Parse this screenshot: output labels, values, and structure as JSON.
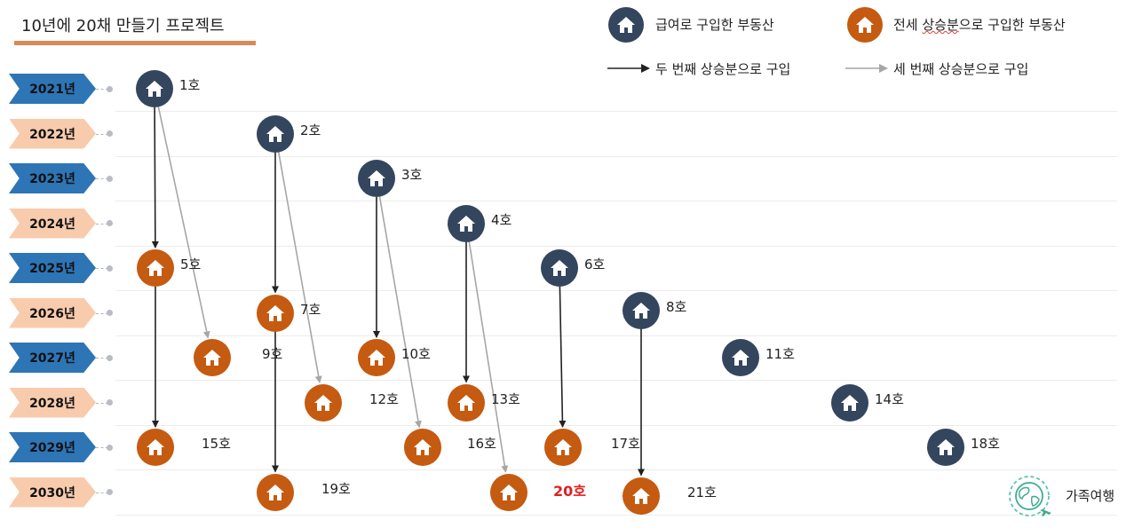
{
  "title": "10년에 20채 만들기 프로젝트",
  "colors": {
    "salary_house": "#34465d",
    "jeonse_house": "#c55a11",
    "tab_blue": "#2e75b6",
    "tab_peach": "#f8cbad",
    "arrow_second": "#222222",
    "arrow_third": "#a6a6a6",
    "highlight": "#e02020"
  },
  "legend": {
    "salary_label": "급여로 구입한 부동산",
    "jeonse_label_prefix": "전세 ",
    "jeonse_label_squiggle": "상승분",
    "jeonse_label_suffix": "으로 구입한 부동산",
    "second_arrow_label": "두 번째 상승분으로 구입",
    "third_arrow_label": "세 번째 상승분으로 구입"
  },
  "years": [
    {
      "label": "2021년",
      "style": "blue"
    },
    {
      "label": "2022년",
      "style": "peach"
    },
    {
      "label": "2023년",
      "style": "blue"
    },
    {
      "label": "2024년",
      "style": "peach"
    },
    {
      "label": "2025년",
      "style": "blue"
    },
    {
      "label": "2026년",
      "style": "peach"
    },
    {
      "label": "2027년",
      "style": "blue"
    },
    {
      "label": "2028년",
      "style": "peach"
    },
    {
      "label": "2029년",
      "style": "blue"
    },
    {
      "label": "2030년",
      "style": "peach"
    }
  ],
  "houses": [
    {
      "id": 1,
      "label": "1호",
      "year": "2021년",
      "source": "salary"
    },
    {
      "id": 2,
      "label": "2호",
      "year": "2022년",
      "source": "salary"
    },
    {
      "id": 3,
      "label": "3호",
      "year": "2023년",
      "source": "salary"
    },
    {
      "id": 4,
      "label": "4호",
      "year": "2024년",
      "source": "salary"
    },
    {
      "id": 5,
      "label": "5호",
      "year": "2025년",
      "source": "jeonse"
    },
    {
      "id": 6,
      "label": "6호",
      "year": "2025년",
      "source": "salary"
    },
    {
      "id": 7,
      "label": "7호",
      "year": "2026년",
      "source": "jeonse"
    },
    {
      "id": 8,
      "label": "8호",
      "year": "2026년",
      "source": "salary"
    },
    {
      "id": 9,
      "label": "9호",
      "year": "2027년",
      "source": "jeonse"
    },
    {
      "id": 10,
      "label": "10호",
      "year": "2027년",
      "source": "jeonse"
    },
    {
      "id": 11,
      "label": "11호",
      "year": "2027년",
      "source": "salary"
    },
    {
      "id": 12,
      "label": "12호",
      "year": "2028년",
      "source": "jeonse"
    },
    {
      "id": 13,
      "label": "13호",
      "year": "2028년",
      "source": "jeonse"
    },
    {
      "id": 14,
      "label": "14호",
      "year": "2028년",
      "source": "salary"
    },
    {
      "id": 15,
      "label": "15호",
      "year": "2029년",
      "source": "jeonse"
    },
    {
      "id": 16,
      "label": "16호",
      "year": "2029년",
      "source": "jeonse"
    },
    {
      "id": 17,
      "label": "17호",
      "year": "2029년",
      "source": "jeonse"
    },
    {
      "id": 18,
      "label": "18호",
      "year": "2029년",
      "source": "salary"
    },
    {
      "id": 19,
      "label": "19호",
      "year": "2030년",
      "source": "jeonse"
    },
    {
      "id": 20,
      "label": "20호",
      "year": "2030년",
      "source": "jeonse",
      "highlight": true
    },
    {
      "id": 21,
      "label": "21호",
      "year": "2030년",
      "source": "jeonse"
    }
  ],
  "links": [
    {
      "from": 1,
      "to": 5,
      "kind": "second"
    },
    {
      "from": 1,
      "to": 9,
      "kind": "third"
    },
    {
      "from": 2,
      "to": 7,
      "kind": "second"
    },
    {
      "from": 2,
      "to": 12,
      "kind": "third"
    },
    {
      "from": 3,
      "to": 10,
      "kind": "second"
    },
    {
      "from": 3,
      "to": 16,
      "kind": "third"
    },
    {
      "from": 4,
      "to": 13,
      "kind": "second"
    },
    {
      "from": 4,
      "to": 20,
      "kind": "third"
    },
    {
      "from": 5,
      "to": 15,
      "kind": "second"
    },
    {
      "from": 6,
      "to": 17,
      "kind": "second"
    },
    {
      "from": 7,
      "to": 19,
      "kind": "second"
    },
    {
      "from": 8,
      "to": 21,
      "kind": "second"
    }
  ],
  "footer": {
    "family_trip_label": "가족여행",
    "family_trip_icon": "globe-plane-icon"
  }
}
